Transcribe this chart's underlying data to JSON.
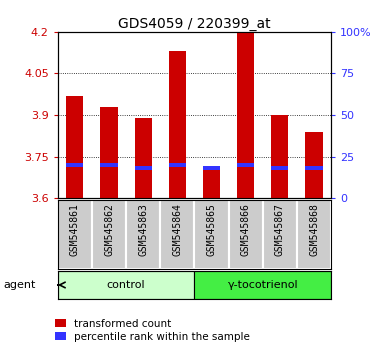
{
  "title": "GDS4059 / 220399_at",
  "samples": [
    "GSM545861",
    "GSM545862",
    "GSM545863",
    "GSM545864",
    "GSM545865",
    "GSM545866",
    "GSM545867",
    "GSM545868"
  ],
  "transformed_counts": [
    3.97,
    3.93,
    3.89,
    4.13,
    3.71,
    4.2,
    3.9,
    3.84
  ],
  "percentile_ranks": [
    20,
    20,
    18,
    20,
    18,
    20,
    18,
    18
  ],
  "ymin": 3.6,
  "ymax": 4.2,
  "yticks": [
    3.6,
    3.75,
    3.9,
    4.05,
    4.2
  ],
  "ytick_labels": [
    "3.6",
    "3.75",
    "3.9",
    "4.05",
    "4.2"
  ],
  "right_yticks": [
    0,
    25,
    50,
    75,
    100
  ],
  "right_ytick_labels": [
    "0",
    "25",
    "50",
    "75",
    "100%"
  ],
  "bar_color": "#cc0000",
  "percentile_color": "#3333ff",
  "groups": [
    {
      "label": "control",
      "samples": [
        0,
        1,
        2,
        3
      ],
      "color": "#ccffcc"
    },
    {
      "label": "γ-tocotrienol",
      "samples": [
        4,
        5,
        6,
        7
      ],
      "color": "#44ee44"
    }
  ],
  "agent_label": "agent",
  "bar_width": 0.5,
  "background_color": "#ffffff",
  "plot_bg_color": "#ffffff",
  "tick_label_area_color": "#cccccc",
  "left_tick_color": "#cc0000",
  "right_tick_color": "#3333ff",
  "title_fontsize": 10,
  "tick_fontsize": 8,
  "sample_fontsize": 7,
  "legend_fontsize": 7.5,
  "group_fontsize": 8
}
